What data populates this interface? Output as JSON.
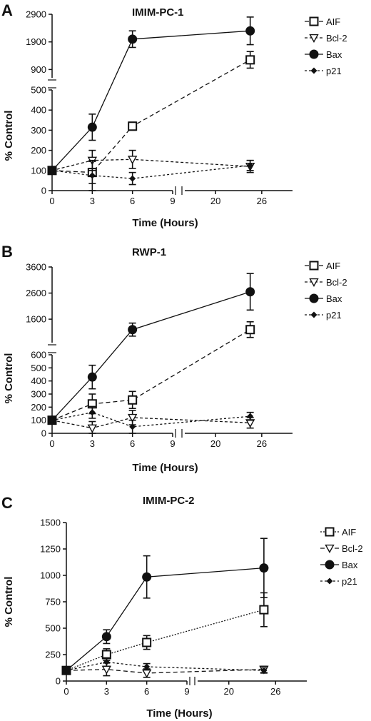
{
  "chart_data": [
    {
      "type": "line",
      "panel_letter": "A",
      "title": "IMIM-PC-1",
      "xlabel": "Time (Hours)",
      "ylabel": "% Control",
      "x_ticks": [
        "0",
        "3",
        "6",
        "9",
        "20",
        "26"
      ],
      "x": [
        0,
        3,
        6,
        24.5
      ],
      "y_lower_range": [
        0,
        500
      ],
      "y_lower_ticks": [
        "0",
        "100",
        "200",
        "300",
        "400",
        "500"
      ],
      "y_upper_range": [
        600,
        2900
      ],
      "y_upper_ticks": [
        "900",
        "1900",
        "2900"
      ],
      "legend_position": "right",
      "series": [
        {
          "name": "AIF",
          "marker": "open-square",
          "dash": "6,4",
          "values": [
            100,
            90,
            320,
            1250
          ],
          "errors": [
            5,
            55,
            20,
            300
          ]
        },
        {
          "name": "Bcl-2",
          "marker": "open-triangle-down",
          "dash": "4,3",
          "values": [
            100,
            150,
            155,
            120
          ],
          "errors": [
            5,
            50,
            45,
            30
          ]
        },
        {
          "name": "Bax",
          "marker": "filled-circle",
          "dash": "",
          "values": [
            100,
            315,
            2000,
            2300
          ],
          "errors": [
            5,
            65,
            300,
            500
          ]
        },
        {
          "name": "p21",
          "marker": "filled-diamond",
          "dash": "3,3",
          "values": [
            100,
            75,
            60,
            125
          ],
          "errors": [
            5,
            75,
            30,
            25
          ]
        }
      ]
    },
    {
      "type": "line",
      "panel_letter": "B",
      "title": "RWP-1",
      "xlabel": "Time (Hours)",
      "ylabel": "% Control",
      "x_ticks": [
        "0",
        "3",
        "6",
        "9",
        "20",
        "26"
      ],
      "x": [
        0,
        3,
        6,
        24.5
      ],
      "y_lower_range": [
        0,
        600
      ],
      "y_lower_ticks": [
        "0",
        "100",
        "200",
        "300",
        "400",
        "500",
        "600"
      ],
      "y_upper_range": [
        700,
        3600
      ],
      "y_upper_ticks": [
        "1600",
        "2600",
        "3600"
      ],
      "legend_position": "right",
      "series": [
        {
          "name": "AIF",
          "marker": "open-square",
          "dash": "6,4",
          "values": [
            100,
            225,
            255,
            1200
          ],
          "errors": [
            5,
            75,
            65,
            300
          ]
        },
        {
          "name": "Bcl-2",
          "marker": "open-triangle-down",
          "dash": "4,3",
          "values": [
            100,
            40,
            120,
            80
          ],
          "errors": [
            5,
            50,
            55,
            40
          ]
        },
        {
          "name": "Bax",
          "marker": "filled-circle",
          "dash": "",
          "values": [
            100,
            430,
            1200,
            2650
          ],
          "errors": [
            5,
            90,
            250,
            700
          ]
        },
        {
          "name": "p21",
          "marker": "filled-diamond",
          "dash": "3,3",
          "values": [
            100,
            160,
            50,
            130
          ],
          "errors": [
            5,
            45,
            50,
            30
          ]
        }
      ]
    },
    {
      "type": "line",
      "panel_letter": "C",
      "title": "IMIM-PC-2",
      "xlabel": "Time (Hours)",
      "ylabel": "% Control",
      "x_ticks": [
        "0",
        "3",
        "6",
        "9",
        "20",
        "26"
      ],
      "x": [
        0,
        3,
        6,
        24.5
      ],
      "y_range": [
        0,
        1500
      ],
      "y_ticks": [
        "0",
        "250",
        "500",
        "750",
        "1000",
        "1250",
        "1500"
      ],
      "legend_position": "right",
      "series": [
        {
          "name": "AIF",
          "marker": "open-square",
          "dash": "2,2",
          "values": [
            100,
            250,
            365,
            675
          ],
          "errors": [
            5,
            55,
            65,
            160
          ]
        },
        {
          "name": "Bcl-2",
          "marker": "open-triangle-down",
          "dash": "6,4",
          "values": [
            100,
            110,
            75,
            110
          ],
          "errors": [
            5,
            60,
            40,
            30
          ]
        },
        {
          "name": "Bax",
          "marker": "filled-circle",
          "dash": "",
          "values": [
            100,
            420,
            985,
            1070
          ],
          "errors": [
            5,
            65,
            200,
            280
          ]
        },
        {
          "name": "p21",
          "marker": "filled-diamond",
          "dash": "3,3",
          "values": [
            100,
            180,
            135,
            100
          ],
          "errors": [
            5,
            40,
            30,
            25
          ]
        }
      ]
    }
  ]
}
